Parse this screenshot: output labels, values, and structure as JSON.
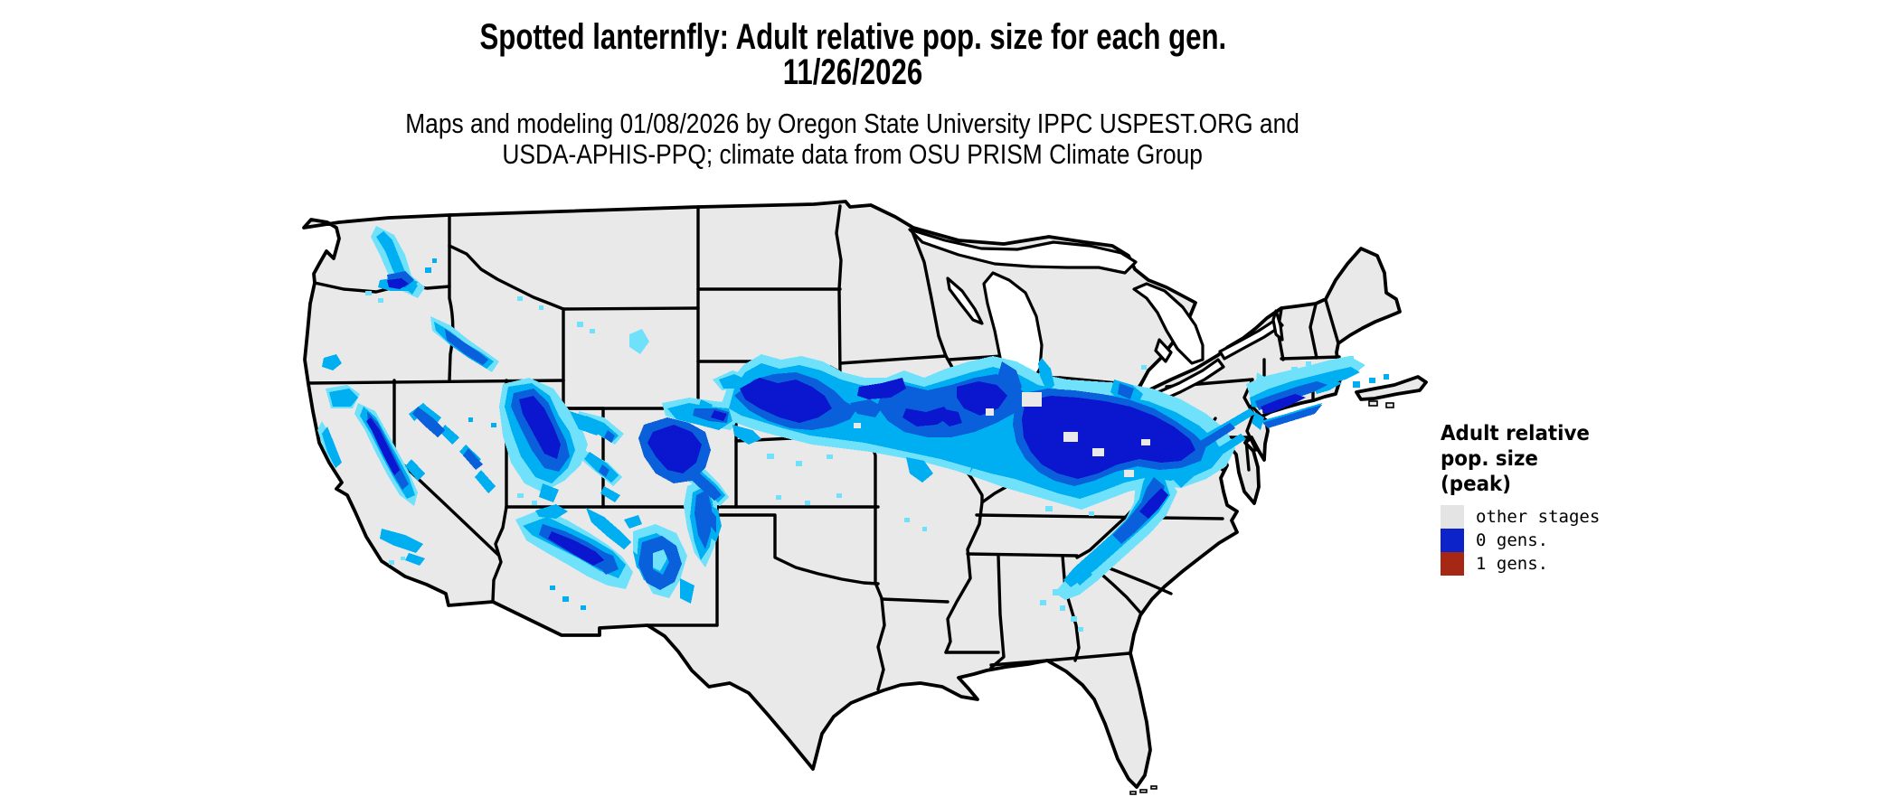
{
  "title": {
    "line1": "Spotted lanternfly: Adult relative pop. size for each gen.",
    "line2": "11/26/2026"
  },
  "subtitle": {
    "line1": "Maps and modeling 01/08/2026 by Oregon State University IPPC USPEST.ORG and",
    "line2": "USDA-APHIS-PPQ; climate data from OSU PRISM Climate Group"
  },
  "map": {
    "description": "Conterminous US states map with modeled spotted lanternfly adult relative population size",
    "land_fill": "#e9e9e9",
    "border_color": "#000000",
    "water_fill": "#ffffff",
    "pop_palette": {
      "l1": "#70e1fb",
      "l2": "#00aef2",
      "l3": "#0a5fdb",
      "l4": "#0b17ce"
    }
  },
  "legend": {
    "title_line1": "Adult relative",
    "title_line2": "pop. size",
    "title_line3": "(peak)",
    "items": [
      {
        "label": "other stages",
        "color": "#e4e4e4"
      },
      {
        "label": "0 gens.",
        "color": "#0b23c8"
      },
      {
        "label": "1 gens.",
        "color": "#a52714"
      }
    ]
  }
}
